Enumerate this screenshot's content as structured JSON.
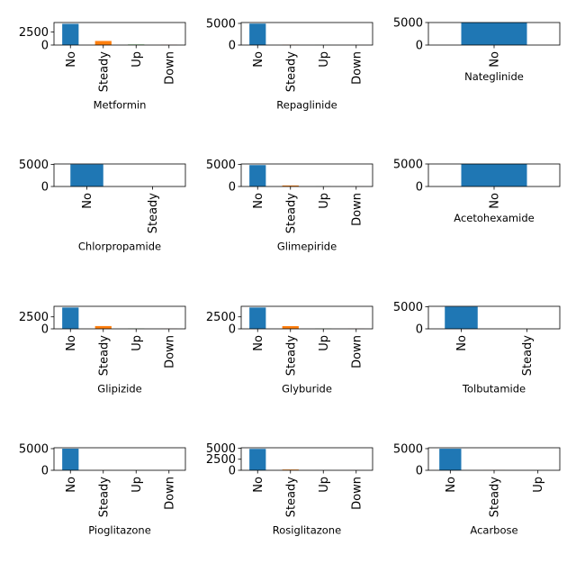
{
  "figure": {
    "background": "#ffffff"
  },
  "colors": {
    "c0": "#1f77b4",
    "c1": "#ff7f0e",
    "c2": "#2ca02c",
    "c3": "#d62728"
  },
  "chart_data": [
    {
      "type": "bar",
      "xlabel": "Metformin",
      "categories": [
        "No",
        "Steady",
        "Up",
        "Down"
      ],
      "values": [
        4050,
        780,
        100,
        30
      ],
      "ylim": [
        0,
        4300
      ],
      "yticks": [
        0,
        2500
      ],
      "ytick_labels": [
        "0",
        "2500"
      ],
      "grid": false
    },
    {
      "type": "bar",
      "xlabel": "Repaglinide",
      "categories": [
        "No",
        "Steady",
        "Up",
        "Down"
      ],
      "values": [
        4950,
        40,
        10,
        3
      ],
      "ylim": [
        0,
        5200
      ],
      "yticks": [
        0,
        5000
      ],
      "ytick_labels": [
        "0",
        "5000"
      ],
      "grid": false
    },
    {
      "type": "bar",
      "xlabel": "Nateglinide",
      "categories": [
        "No"
      ],
      "values": [
        5000
      ],
      "ylim": [
        0,
        5000
      ],
      "yticks": [
        0,
        5000
      ],
      "ytick_labels": [
        "0",
        "5000"
      ],
      "grid": false
    },
    {
      "type": "bar",
      "xlabel": "Chlorpropamide",
      "categories": [
        "No",
        "Steady"
      ],
      "values": [
        5000,
        5
      ],
      "ylim": [
        0,
        5100
      ],
      "yticks": [
        0,
        5000
      ],
      "ytick_labels": [
        "0",
        "5000"
      ],
      "grid": false
    },
    {
      "type": "bar",
      "xlabel": "Glimepiride",
      "categories": [
        "No",
        "Steady",
        "Up",
        "Down"
      ],
      "values": [
        4850,
        230,
        20,
        10
      ],
      "ylim": [
        0,
        5100
      ],
      "yticks": [
        0,
        5000
      ],
      "ytick_labels": [
        "0",
        "5000"
      ],
      "grid": false
    },
    {
      "type": "bar",
      "xlabel": "Acetohexamide",
      "categories": [
        "No"
      ],
      "values": [
        5000
      ],
      "ylim": [
        0,
        5000
      ],
      "yticks": [
        0,
        5000
      ],
      "ytick_labels": [
        "0",
        "5000"
      ],
      "grid": false
    },
    {
      "type": "bar",
      "xlabel": "Glipizide",
      "categories": [
        "No",
        "Steady",
        "Up",
        "Down"
      ],
      "values": [
        4450,
        580,
        45,
        25
      ],
      "ylim": [
        0,
        4700
      ],
      "yticks": [
        0,
        2500
      ],
      "ytick_labels": [
        "0",
        "2500"
      ],
      "grid": false
    },
    {
      "type": "bar",
      "xlabel": "Glyburide",
      "categories": [
        "No",
        "Steady",
        "Up",
        "Down"
      ],
      "values": [
        4450,
        570,
        35,
        25
      ],
      "ylim": [
        0,
        4700
      ],
      "yticks": [
        0,
        2500
      ],
      "ytick_labels": [
        "0",
        "2500"
      ],
      "grid": false
    },
    {
      "type": "bar",
      "xlabel": "Tolbutamide",
      "categories": [
        "No",
        "Steady"
      ],
      "values": [
        5000,
        3
      ],
      "ylim": [
        0,
        5100
      ],
      "yticks": [
        0,
        5000
      ],
      "ytick_labels": [
        "0",
        "5000"
      ],
      "grid": false
    },
    {
      "type": "bar",
      "xlabel": "Pioglitazone",
      "categories": [
        "No",
        "Steady",
        "Up",
        "Down"
      ],
      "values": [
        4990,
        15,
        3,
        1
      ],
      "ylim": [
        0,
        5200
      ],
      "yticks": [
        0,
        5000
      ],
      "ytick_labels": [
        "0",
        "5000"
      ],
      "grid": false
    },
    {
      "type": "bar",
      "xlabel": "Rosiglitazone",
      "categories": [
        "No",
        "Steady",
        "Up",
        "Down"
      ],
      "values": [
        4850,
        170,
        10,
        5
      ],
      "ylim": [
        0,
        5100
      ],
      "yticks": [
        0,
        2500,
        5000
      ],
      "ytick_labels": [
        "0",
        "2500",
        "5000"
      ],
      "grid": false
    },
    {
      "type": "bar",
      "xlabel": "Acarbose",
      "categories": [
        "No",
        "Steady",
        "Up"
      ],
      "values": [
        4980,
        20,
        2
      ],
      "ylim": [
        0,
        5200
      ],
      "yticks": [
        0,
        5000
      ],
      "ytick_labels": [
        "0",
        "5000"
      ],
      "grid": false
    }
  ]
}
